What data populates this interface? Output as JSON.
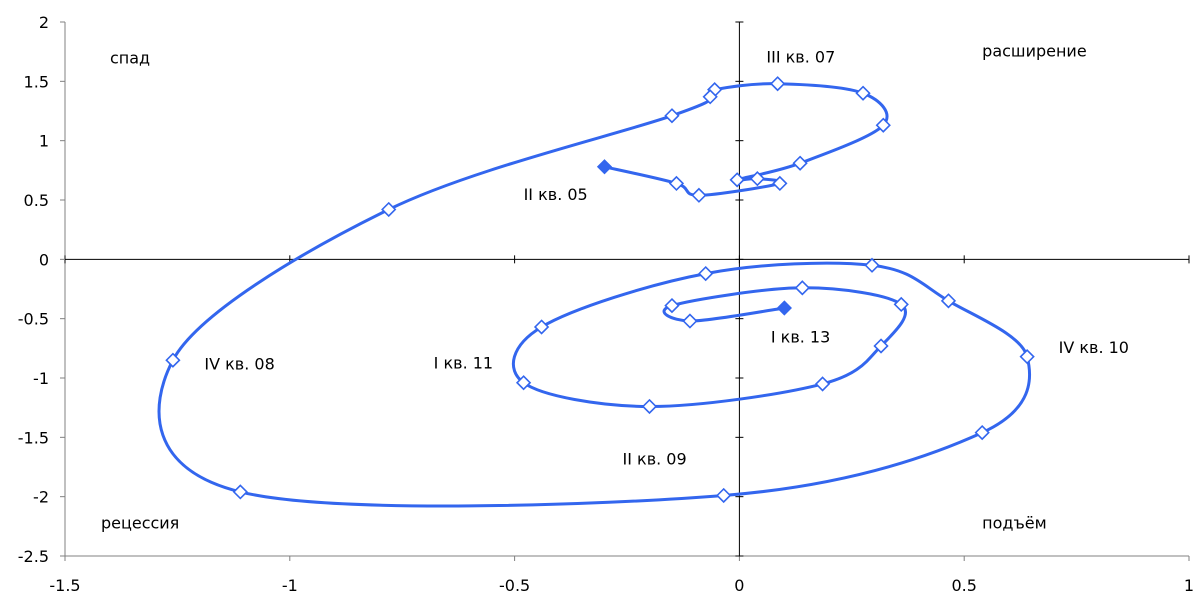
{
  "chart_data": {
    "type": "line",
    "xlim": [
      -1.5,
      1
    ],
    "ylim": [
      -2.5,
      2
    ],
    "x_ticks": [
      "-1.5",
      "-1",
      "-0.5",
      "0",
      "0.5",
      "1"
    ],
    "y_ticks": [
      "2",
      "1.5",
      "1",
      "0.5",
      "0",
      "-0.5",
      "-1",
      "-1.5",
      "-2",
      "-2.5"
    ],
    "grid": false,
    "line_color": "#3366ee",
    "series": [
      {
        "markers": [
          [
            -0.3,
            0.78
          ],
          [
            -0.14,
            0.64
          ],
          [
            -0.09,
            0.54
          ],
          [
            0.09,
            0.64
          ],
          [
            0.04,
            0.68
          ],
          [
            -0.005,
            0.67
          ],
          [
            0.135,
            0.81
          ],
          [
            0.32,
            1.13
          ],
          [
            0.275,
            1.4
          ],
          [
            0.085,
            1.48
          ],
          [
            -0.055,
            1.43
          ],
          [
            -0.065,
            1.37
          ],
          [
            -0.15,
            1.21
          ],
          [
            -0.78,
            0.42
          ],
          [
            -1.26,
            -0.85
          ],
          [
            -1.11,
            -1.96
          ],
          [
            -0.035,
            -1.99
          ],
          [
            0.54,
            -1.46
          ],
          [
            0.64,
            -0.82
          ],
          [
            0.465,
            -0.35
          ],
          [
            0.295,
            -0.05
          ],
          [
            -0.075,
            -0.12
          ],
          [
            -0.44,
            -0.57
          ],
          [
            -0.48,
            -1.04
          ],
          [
            -0.2,
            -1.24
          ],
          [
            0.185,
            -1.05
          ],
          [
            0.315,
            -0.73
          ],
          [
            0.36,
            -0.38
          ],
          [
            0.14,
            -0.24
          ],
          [
            -0.15,
            -0.39
          ],
          [
            -0.11,
            -0.52
          ],
          [
            0.1,
            -0.41
          ]
        ]
      }
    ],
    "annotations": [
      {
        "text": "спад",
        "x": -1.4,
        "y": 1.65
      },
      {
        "text": "расширение",
        "x": 0.54,
        "y": 1.71
      },
      {
        "text": "рецессия",
        "x": -1.42,
        "y": -2.27
      },
      {
        "text": "подъём",
        "x": 0.54,
        "y": -2.27
      },
      {
        "text": "III кв. 07",
        "x": 0.06,
        "y": 1.66
      },
      {
        "text": "II кв. 05",
        "x": -0.48,
        "y": 0.5
      },
      {
        "text": "IV кв. 08",
        "x": -1.19,
        "y": -0.93
      },
      {
        "text": "I кв. 11",
        "x": -0.68,
        "y": -0.92
      },
      {
        "text": "I кв. 13",
        "x": 0.07,
        "y": -0.7
      },
      {
        "text": "IV кв. 10",
        "x": 0.71,
        "y": -0.79
      },
      {
        "text": "II кв. 09",
        "x": -0.26,
        "y": -1.73
      }
    ]
  }
}
